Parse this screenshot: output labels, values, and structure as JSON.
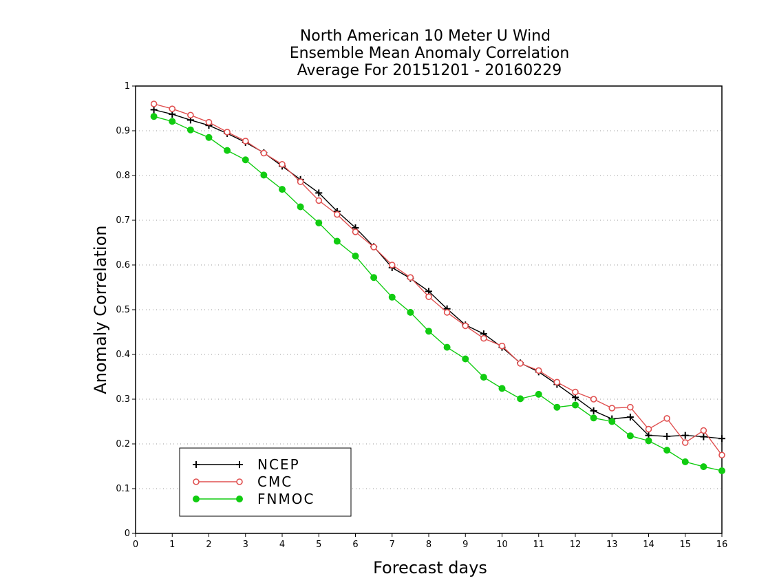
{
  "chart_data": {
    "type": "line",
    "title": [
      "North American 10 Meter U Wind",
      "Ensemble Mean Anomaly Correlation",
      "Average For 20151201 - 20160229"
    ],
    "xlabel": "Forecast days",
    "ylabel": "Anomaly Correlation",
    "xlim": [
      0,
      16
    ],
    "ylim": [
      0,
      1
    ],
    "x_ticks": [
      "0",
      "1",
      "2",
      "3",
      "4",
      "5",
      "6",
      "7",
      "8",
      "9",
      "10",
      "11",
      "12",
      "13",
      "14",
      "15",
      "16"
    ],
    "y_ticks": [
      "0",
      "0.1",
      "0.2",
      "0.3",
      "0.4",
      "0.5",
      "0.6",
      "0.7",
      "0.8",
      "0.9",
      "1"
    ],
    "grid": "horizontal dotted",
    "legend_position": "bottom-left",
    "x": [
      0.5,
      1,
      1.5,
      2,
      2.5,
      3,
      3.5,
      4,
      4.5,
      5,
      5.5,
      6,
      6.5,
      7,
      7.5,
      8,
      8.5,
      9,
      9.5,
      10,
      10.5,
      11,
      11.5,
      12,
      12.5,
      13,
      13.5,
      14,
      14.5,
      15,
      15.5,
      16
    ],
    "series": [
      {
        "name": "NCEP",
        "color": "#000000",
        "marker": "plus",
        "values": [
          0.947,
          0.937,
          0.924,
          0.912,
          0.894,
          0.874,
          0.851,
          0.821,
          0.791,
          0.761,
          0.72,
          0.683,
          0.641,
          0.594,
          0.57,
          0.541,
          0.502,
          0.466,
          0.446,
          0.416,
          0.381,
          0.361,
          0.333,
          0.304,
          0.274,
          0.256,
          0.26,
          0.219,
          0.217,
          0.219,
          0.216,
          0.212
        ]
      },
      {
        "name": "CMC",
        "color": "#e05050",
        "marker": "open-circle",
        "values": [
          0.96,
          0.949,
          0.935,
          0.919,
          0.897,
          0.877,
          0.85,
          0.825,
          0.786,
          0.744,
          0.713,
          0.674,
          0.64,
          0.6,
          0.572,
          0.529,
          0.494,
          0.464,
          0.436,
          0.419,
          0.38,
          0.364,
          0.338,
          0.316,
          0.3,
          0.28,
          0.282,
          0.233,
          0.257,
          0.203,
          0.23,
          0.175
        ]
      },
      {
        "name": "FNMOC",
        "color": "#11cc11",
        "marker": "filled-circle",
        "values": [
          0.932,
          0.921,
          0.902,
          0.885,
          0.856,
          0.835,
          0.801,
          0.769,
          0.73,
          0.694,
          0.653,
          0.62,
          0.572,
          0.528,
          0.494,
          0.452,
          0.416,
          0.39,
          0.349,
          0.324,
          0.301,
          0.311,
          0.282,
          0.287,
          0.258,
          0.25,
          0.218,
          0.207,
          0.186,
          0.16,
          0.149,
          0.14
        ]
      }
    ]
  }
}
